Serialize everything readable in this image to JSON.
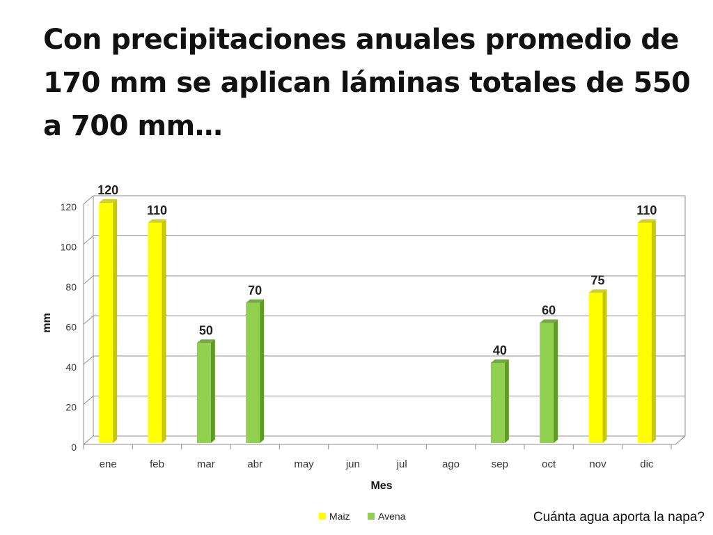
{
  "slide": {
    "title": "Con precipitaciones anuales promedio de 170 mm se aplican láminas totales de 550 a 700 mm…",
    "footnote": "Cuánta agua aporta la napa?"
  },
  "colors": {
    "maiz": "#ffff00",
    "maiz_side": "#c8c800",
    "avena": "#92d050",
    "avena_side": "#5f9a22",
    "grid": "#8c8c8c"
  },
  "chart_data": {
    "type": "bar",
    "title": "",
    "xlabel": "Mes",
    "ylabel": "mm",
    "ylim": [
      0,
      120
    ],
    "yticks": [
      0,
      20,
      40,
      60,
      80,
      100,
      120
    ],
    "grid": true,
    "legend_position": "bottom",
    "categories": [
      "ene",
      "feb",
      "mar",
      "abr",
      "may",
      "jun",
      "jul",
      "ago",
      "sep",
      "oct",
      "nov",
      "dic"
    ],
    "series": [
      {
        "name": "Maiz",
        "color_key": "maiz",
        "values": [
          120,
          110,
          null,
          null,
          null,
          null,
          null,
          null,
          null,
          null,
          75,
          110
        ]
      },
      {
        "name": "Avena",
        "color_key": "avena",
        "values": [
          null,
          null,
          50,
          70,
          null,
          null,
          null,
          null,
          40,
          60,
          null,
          null
        ]
      }
    ]
  }
}
